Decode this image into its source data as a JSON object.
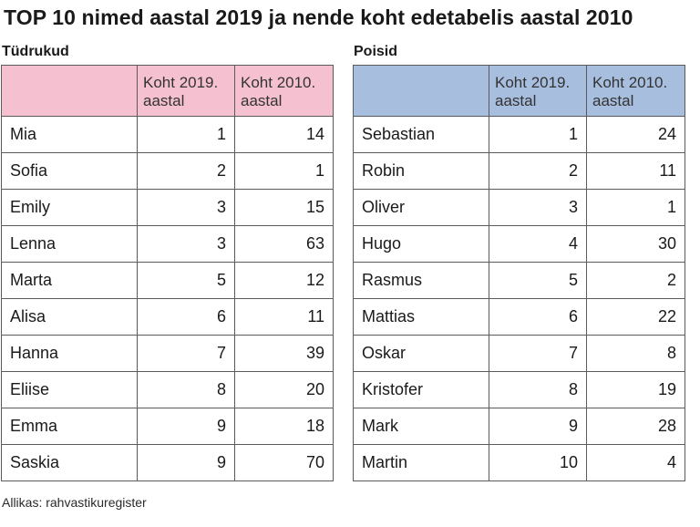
{
  "title": "TOP 10 nimed aastal 2019 ja nende koht edetabelis aastal 2010",
  "girls": {
    "label": "Tüdrukud",
    "header_color": "#f5c1d0",
    "columns": [
      "",
      "Koht 2019. aastal",
      "Koht 2010. aastal"
    ],
    "rows": [
      {
        "name": "Mia",
        "rank2019": "1",
        "rank2010": "14"
      },
      {
        "name": "Sofia",
        "rank2019": "2",
        "rank2010": "1"
      },
      {
        "name": "Emily",
        "rank2019": "3",
        "rank2010": "15"
      },
      {
        "name": "Lenna",
        "rank2019": "3",
        "rank2010": "63"
      },
      {
        "name": "Marta",
        "rank2019": "5",
        "rank2010": "12"
      },
      {
        "name": "Alisa",
        "rank2019": "6",
        "rank2010": "11"
      },
      {
        "name": "Hanna",
        "rank2019": "7",
        "rank2010": "39"
      },
      {
        "name": "Eliise",
        "rank2019": "8",
        "rank2010": "20"
      },
      {
        "name": "Emma",
        "rank2019": "9",
        "rank2010": "18"
      },
      {
        "name": "Saskia",
        "rank2019": "9",
        "rank2010": "70"
      }
    ]
  },
  "boys": {
    "label": "Poisid",
    "header_color": "#a8bedf",
    "columns": [
      "",
      "Koht 2019. aastal",
      "Koht 2010. aastal"
    ],
    "rows": [
      {
        "name": "Sebastian",
        "rank2019": "1",
        "rank2010": "24"
      },
      {
        "name": "Robin",
        "rank2019": "2",
        "rank2010": "11"
      },
      {
        "name": "Oliver",
        "rank2019": "3",
        "rank2010": "1"
      },
      {
        "name": "Hugo",
        "rank2019": "4",
        "rank2010": "30"
      },
      {
        "name": "Rasmus",
        "rank2019": "5",
        "rank2010": "2"
      },
      {
        "name": "Mattias",
        "rank2019": "6",
        "rank2010": "22"
      },
      {
        "name": "Oskar",
        "rank2019": "7",
        "rank2010": "8"
      },
      {
        "name": "Kristofer",
        "rank2019": "8",
        "rank2010": "19"
      },
      {
        "name": "Mark",
        "rank2019": "9",
        "rank2010": "28"
      },
      {
        "name": "Martin",
        "rank2019": "10",
        "rank2010": "4"
      }
    ]
  },
  "source": "Allikas: rahvastikuregister"
}
